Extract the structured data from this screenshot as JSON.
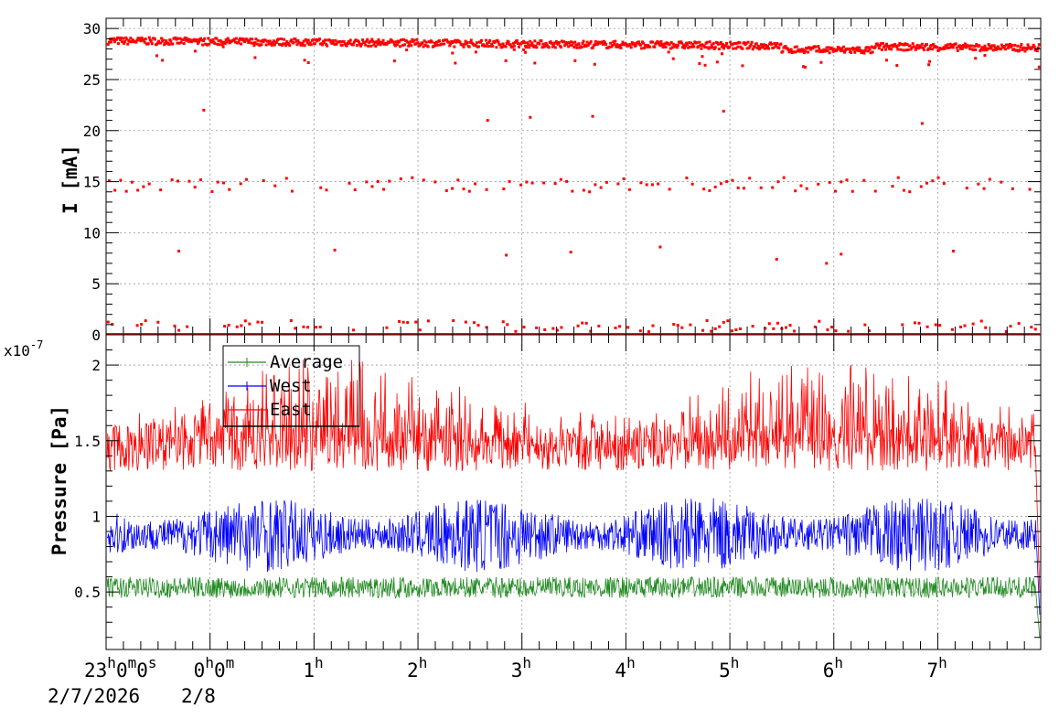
{
  "chart_data": [
    {
      "type": "scatter",
      "ylabel": "I [mA]",
      "ylim": [
        0,
        31
      ],
      "yticks": [
        "0",
        "5",
        "10",
        "15",
        "20",
        "25",
        "30"
      ],
      "grid": true,
      "series": [
        {
          "color": "#ff0000",
          "bands": [
            {
              "level": "main",
              "values_start_end": [
                28.8,
                28.1
              ],
              "typical_range": [
                28.0,
                29.3
              ]
            },
            {
              "level": "secondary",
              "typical_value": 14.7,
              "range": [
                13.5,
                15.6
              ]
            },
            {
              "level": "near-zero",
              "typical_value": 0.3,
              "range": [
                0,
                1.9
              ]
            }
          ],
          "sample_outliers": [
            {
              "t_hours": -0.06,
              "y": 22.0
            },
            {
              "t_hours": 2.67,
              "y": 21.0
            },
            {
              "t_hours": 3.08,
              "y": 21.3
            },
            {
              "t_hours": 3.68,
              "y": 21.4
            },
            {
              "t_hours": 4.94,
              "y": 21.9
            },
            {
              "t_hours": 6.85,
              "y": 20.7
            },
            {
              "t_hours": -0.3,
              "y": 8.2
            },
            {
              "t_hours": 1.2,
              "y": 8.3
            },
            {
              "t_hours": 2.85,
              "y": 7.8
            },
            {
              "t_hours": 3.47,
              "y": 8.1
            },
            {
              "t_hours": 4.33,
              "y": 8.6
            },
            {
              "t_hours": 5.45,
              "y": 7.4
            },
            {
              "t_hours": 5.93,
              "y": 7.0
            },
            {
              "t_hours": 6.07,
              "y": 7.9
            },
            {
              "t_hours": 7.15,
              "y": 8.2
            }
          ]
        }
      ]
    },
    {
      "type": "line",
      "ylabel": "Pressure [Pa]",
      "yscale_label": "x10",
      "yscale_exp": "-7",
      "ylim": [
        0.12,
        2.2
      ],
      "yticks": [
        "0.5",
        "1",
        "1.5",
        "2"
      ],
      "xticks_hours": [
        "0",
        "1",
        "2",
        "3",
        "4",
        "5",
        "6",
        "7"
      ],
      "grid": true,
      "legend_position": "top-left",
      "series": [
        {
          "name": "Average",
          "color": "#228b22",
          "baseline": 0.53,
          "spread": 0.07,
          "end_value": 0.2
        },
        {
          "name": "West",
          "color": "#0000ff",
          "baseline": 0.88,
          "spread": 0.25,
          "end_value": 0.35
        },
        {
          "name": "East",
          "color": "#ff0000",
          "baseline": 1.5,
          "spread": 0.4,
          "end_value": 0.5
        }
      ]
    }
  ],
  "xaxis": {
    "start_label": "23",
    "start_units": [
      "h",
      "m",
      "s"
    ],
    "start_values": [
      "0",
      "0"
    ],
    "date1": "2/7/2026",
    "date2": "2/8",
    "hour_labels": [
      "0",
      "1",
      "2",
      "3",
      "4",
      "5",
      "6",
      "7"
    ],
    "time_start_hours": -1.0,
    "time_end_hours": 7.99
  }
}
